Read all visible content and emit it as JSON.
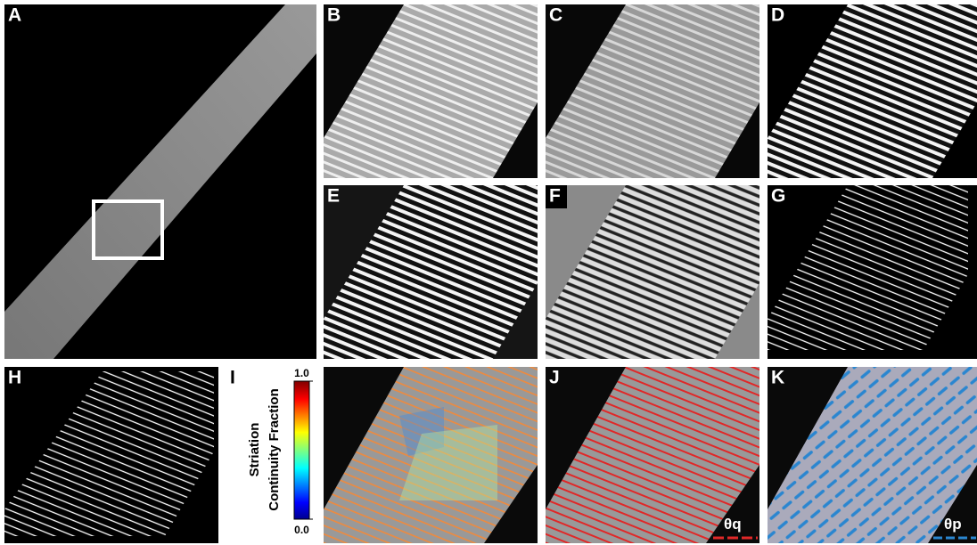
{
  "panel_labels": [
    "A",
    "B",
    "C",
    "D",
    "E",
    "F",
    "G",
    "H",
    "I",
    "J",
    "K"
  ],
  "colorbar": {
    "label_lines": [
      "Striation",
      "Continuity Fraction"
    ],
    "range": [
      0,
      1
    ],
    "ticks": [
      {
        "value": 1,
        "label": "1.0"
      },
      {
        "value": 0,
        "label": "0.0"
      }
    ]
  },
  "annotations": [
    "θq",
    "θp"
  ]
}
